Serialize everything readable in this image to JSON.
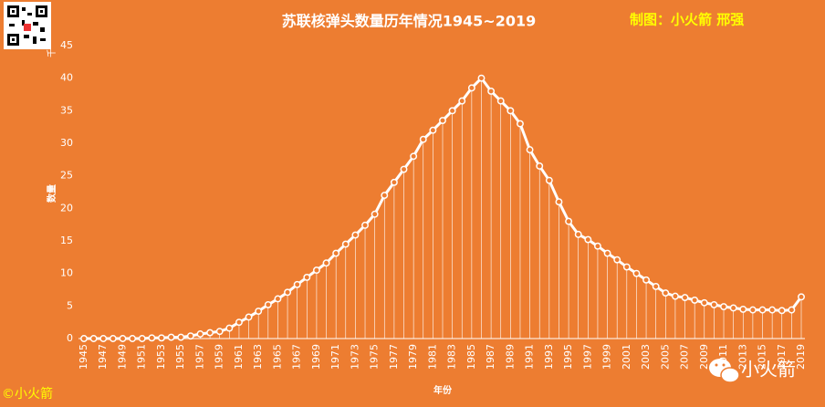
{
  "chart_data": {
    "type": "line",
    "title": "苏联核弹头数量历年情况1945~2019",
    "credit": "制图：小火箭 邢强",
    "y_unit": "千",
    "y_label": "数量",
    "x_label": "年份",
    "copyright": "©小火箭",
    "watermark": "小火箭",
    "background": "#ED7D31",
    "x": [
      1945,
      1946,
      1947,
      1948,
      1949,
      1950,
      1951,
      1952,
      1953,
      1954,
      1955,
      1956,
      1957,
      1958,
      1959,
      1960,
      1961,
      1962,
      1963,
      1964,
      1965,
      1966,
      1967,
      1968,
      1969,
      1970,
      1971,
      1972,
      1973,
      1974,
      1975,
      1976,
      1977,
      1978,
      1979,
      1980,
      1981,
      1982,
      1983,
      1984,
      1985,
      1986,
      1987,
      1988,
      1989,
      1990,
      1991,
      1992,
      1993,
      1994,
      1995,
      1996,
      1997,
      1998,
      1999,
      2000,
      2001,
      2002,
      2003,
      2004,
      2005,
      2006,
      2007,
      2008,
      2009,
      2010,
      2011,
      2012,
      2013,
      2014,
      2015,
      2016,
      2017,
      2018,
      2019
    ],
    "series": [
      {
        "color": "#FFFFFF",
        "values": [
          0,
          0,
          0,
          0,
          0,
          0,
          0,
          0.1,
          0.1,
          0.2,
          0.2,
          0.4,
          0.7,
          0.9,
          1.1,
          1.6,
          2.5,
          3.3,
          4.2,
          5.2,
          6.1,
          7.1,
          8.3,
          9.4,
          10.5,
          11.6,
          13.1,
          14.5,
          15.9,
          17.4,
          19.1,
          22,
          24,
          26,
          28,
          30.6,
          32,
          33.5,
          35,
          36.5,
          38.5,
          40,
          38,
          36.5,
          35,
          33,
          29,
          26.5,
          24.3,
          21,
          18,
          16,
          15.2,
          14.2,
          13.1,
          12.1,
          11,
          10,
          9,
          8,
          7,
          6.5,
          6.3,
          5.9,
          5.5,
          5.2,
          4.9,
          4.7,
          4.5,
          4.4,
          4.4,
          4.4,
          4.3,
          4.4,
          6.4
        ]
      }
    ],
    "xlim": [
      1945,
      2019
    ],
    "xticks": [
      1945,
      1947,
      1949,
      1951,
      1953,
      1955,
      1957,
      1959,
      1961,
      1963,
      1965,
      1967,
      1969,
      1971,
      1973,
      1975,
      1977,
      1979,
      1981,
      1983,
      1985,
      1987,
      1989,
      1991,
      1993,
      1995,
      1997,
      1999,
      2001,
      2003,
      2005,
      2007,
      2009,
      2011,
      2013,
      2015,
      2017,
      2019
    ],
    "ylim": [
      0,
      45
    ],
    "yticks": [
      0,
      5,
      10,
      15,
      20,
      25,
      30,
      35,
      40,
      45
    ]
  }
}
